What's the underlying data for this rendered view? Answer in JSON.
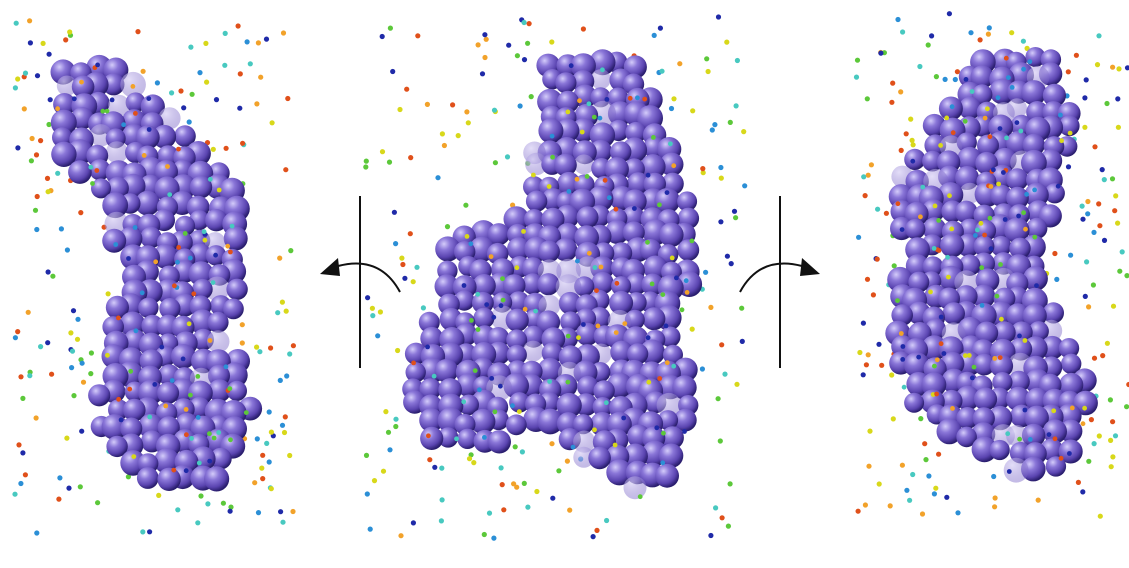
{
  "figure": {
    "panels": [
      {
        "view": "left-rotated-view"
      },
      {
        "view": "front-view"
      },
      {
        "view": "right-rotated-view"
      }
    ],
    "rotation_indicators": [
      {
        "direction": "counter-clockwise",
        "icon": "rotate-left-icon"
      },
      {
        "direction": "clockwise",
        "icon": "rotate-right-icon"
      }
    ],
    "colors": {
      "sphere_fill": "#6a55c0",
      "sphere_highlight": "#c8bff5",
      "sphere_shadow": "#2a1e6e",
      "dot_palette": [
        "#1f2aa8",
        "#2b8fd6",
        "#48c9c0",
        "#5cc83a",
        "#d8d81a",
        "#f2a22a",
        "#e0501a"
      ]
    }
  }
}
